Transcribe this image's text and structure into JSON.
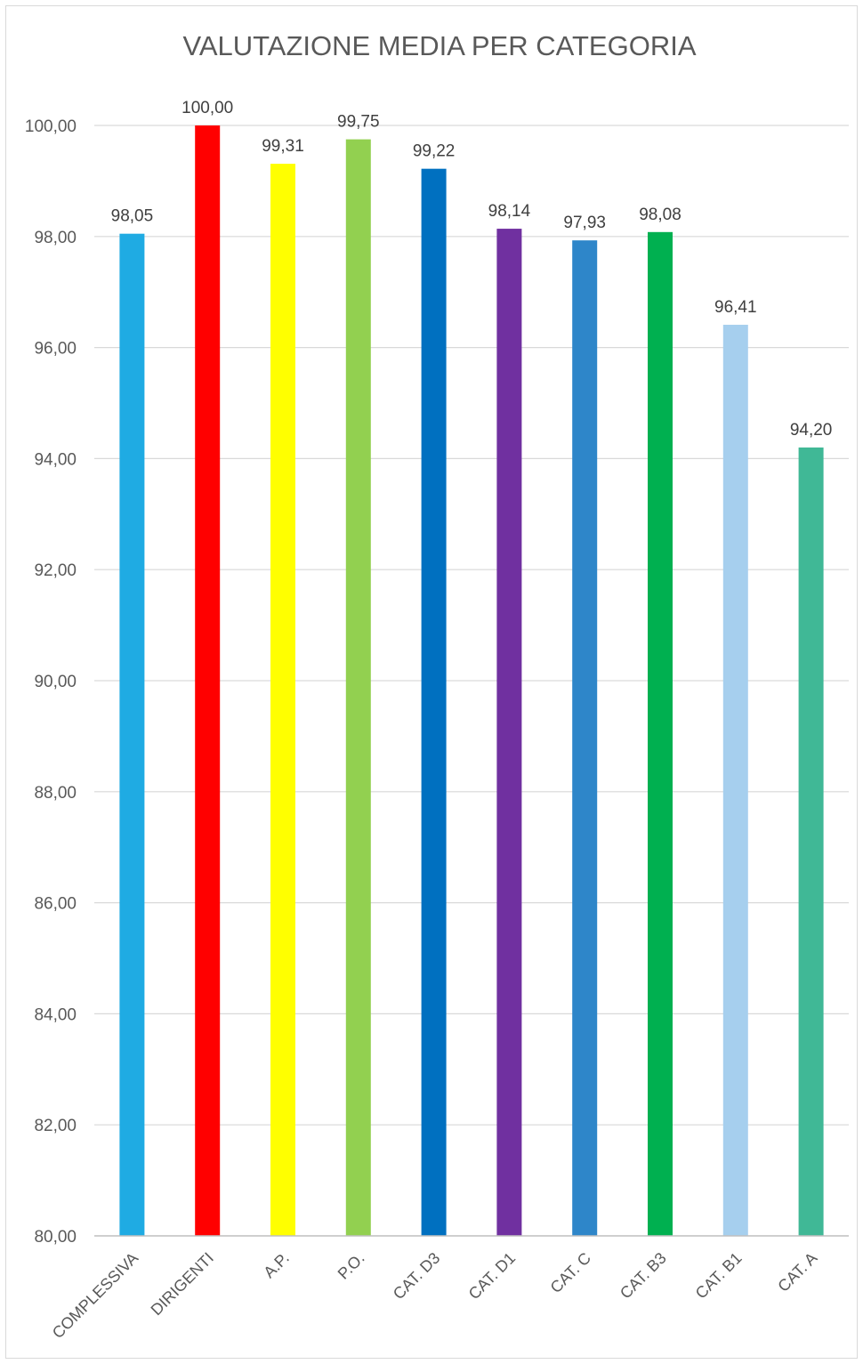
{
  "chart_data": {
    "type": "bar",
    "title": "VALUTAZIONE MEDIA PER CATEGORIA",
    "xlabel": "",
    "ylabel": "",
    "ylim": [
      80,
      100
    ],
    "y_ticks": [
      "80,00",
      "82,00",
      "84,00",
      "86,00",
      "88,00",
      "90,00",
      "92,00",
      "94,00",
      "96,00",
      "98,00",
      "100,00"
    ],
    "grid": true,
    "legend": "none",
    "categories": [
      "COMPLESSIVA",
      "DIRIGENTI",
      "A.P.",
      "P.O.",
      "CAT. D3",
      "CAT. D1",
      "CAT. C",
      "CAT. B3",
      "CAT. B1",
      "CAT. A"
    ],
    "values": [
      98.05,
      100.0,
      99.31,
      99.75,
      99.22,
      98.14,
      97.93,
      98.08,
      96.41,
      94.2
    ],
    "value_labels": [
      "98,05",
      "100,00",
      "99,31",
      "99,75",
      "99,22",
      "98,14",
      "97,93",
      "98,08",
      "96,41",
      "94,20"
    ],
    "colors": [
      "#1fabe3",
      "#ff0000",
      "#ffff00",
      "#92d050",
      "#0070c0",
      "#7030a0",
      "#2e86c9",
      "#00b050",
      "#a6cfee",
      "#40b896"
    ]
  }
}
